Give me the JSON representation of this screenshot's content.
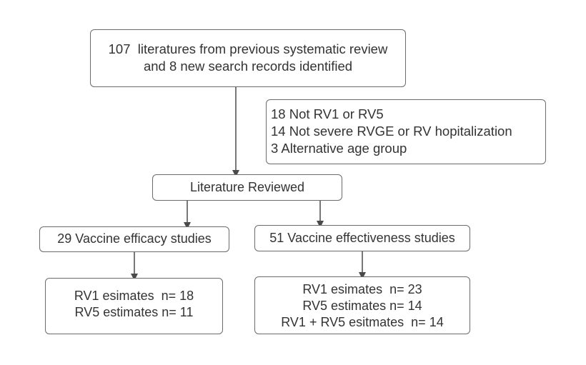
{
  "source": {
    "lines": [
      "107  literatures from previous systematic review",
      "and 8 new search records identified"
    ]
  },
  "exclusions": {
    "lines": [
      "18 Not RV1 or RV5",
      "14 Not severe RVGE or RV hopitalization",
      "3 Alternative age group"
    ]
  },
  "reviewed": {
    "label": "Literature Reviewed"
  },
  "efficacy": {
    "label": "29 Vaccine efficacy studies",
    "estimates": [
      "RV1 esimates  n= 18",
      "RV5 estimates n= 11"
    ]
  },
  "effectiveness": {
    "label": "51 Vaccine effectiveness studies",
    "estimates": [
      "RV1 esimates  n= 23",
      "RV5 estimates n= 14",
      "RV1 + RV5 esitmates  n= 14"
    ]
  },
  "colors": {
    "border": "#6b6b6b",
    "arrow": "#4a4a4a",
    "text": "#333333"
  }
}
